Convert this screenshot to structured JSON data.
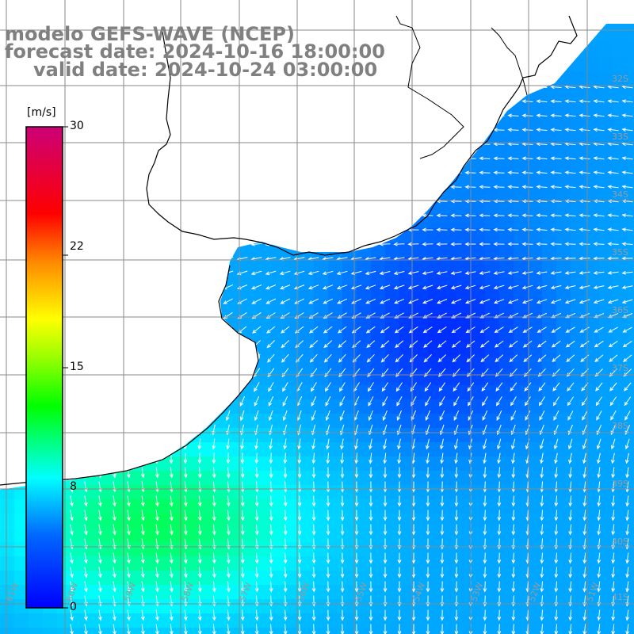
{
  "header": {
    "title_line_1": "modelo GEFS-WAVE (NCEP)",
    "title_line_2": "forecast date: 2024-10-16 18:00:00",
    "title_line_3": "valid date: 2024-10-24 03:00:00"
  },
  "colorbar": {
    "unit": "[m/s]",
    "tick_labels": [
      "30",
      "22",
      "15",
      "8",
      "0"
    ],
    "tick_values": [
      30,
      22,
      15,
      8,
      0
    ],
    "min": 0,
    "max": 30,
    "colors": [
      "#0000ff",
      "#00aaff",
      "#00ffff",
      "#00ff00",
      "#ffff00",
      "#ff8800",
      "#ff0000",
      "#cc0077"
    ]
  },
  "map": {
    "field": "wind speed with wind direction arrows",
    "land_color": "#ffffff",
    "grid_color": "#888888",
    "coast_color": "#000000",
    "arrow_color": "#ffffff",
    "lon_labels": [
      "61W",
      "60W",
      "59W",
      "58W",
      "57W",
      "56W",
      "55W",
      "54W",
      "53W",
      "52W",
      "51W",
      "50W"
    ],
    "lat_labels": [
      "32S",
      "33S",
      "34S",
      "35S",
      "36S",
      "37S",
      "38S",
      "39S",
      "40S",
      "41S"
    ],
    "speed_regions": {
      "south_west_max": 11,
      "central_east_min": 2,
      "north_coast": 5,
      "typical": 6
    }
  }
}
